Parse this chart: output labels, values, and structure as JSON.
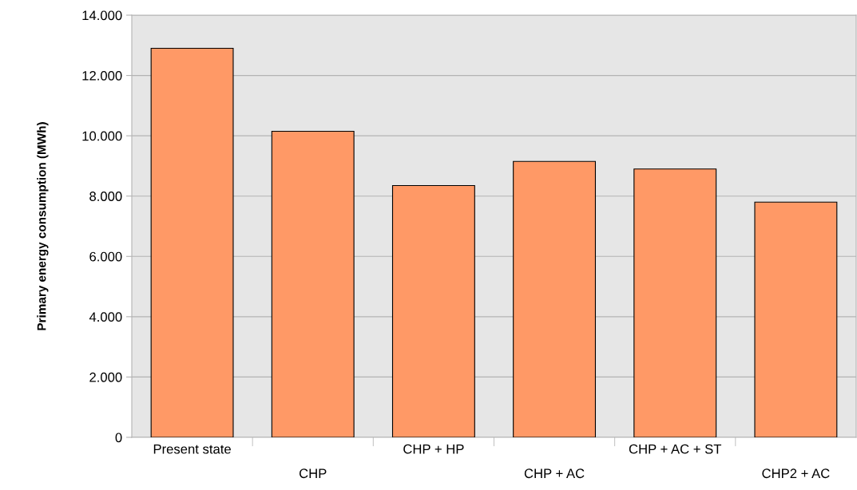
{
  "chart_data": {
    "type": "bar",
    "ylabel": "Primary energy consumption (MWh)",
    "categories": [
      "Present state",
      "CHP",
      "CHP + HP",
      "CHP + AC",
      "CHP + AC + ST",
      "CHP2 + AC"
    ],
    "values": [
      12900,
      10150,
      8350,
      9150,
      8900,
      7800
    ],
    "color": "#ff9966",
    "ylim": [
      0,
      14000
    ],
    "yticks": [
      0,
      {
        "value": 2000,
        "label": "2.000"
      },
      {
        "value": 4000,
        "label": "4.000"
      },
      {
        "value": 6000,
        "label": "6.000"
      },
      {
        "value": 8000,
        "label": "8.000"
      },
      {
        "value": 10000,
        "label": "10.000"
      },
      {
        "value": 12000,
        "label": "12.000"
      },
      {
        "value": 14000,
        "label": "14.000"
      }
    ],
    "grid": "y"
  }
}
